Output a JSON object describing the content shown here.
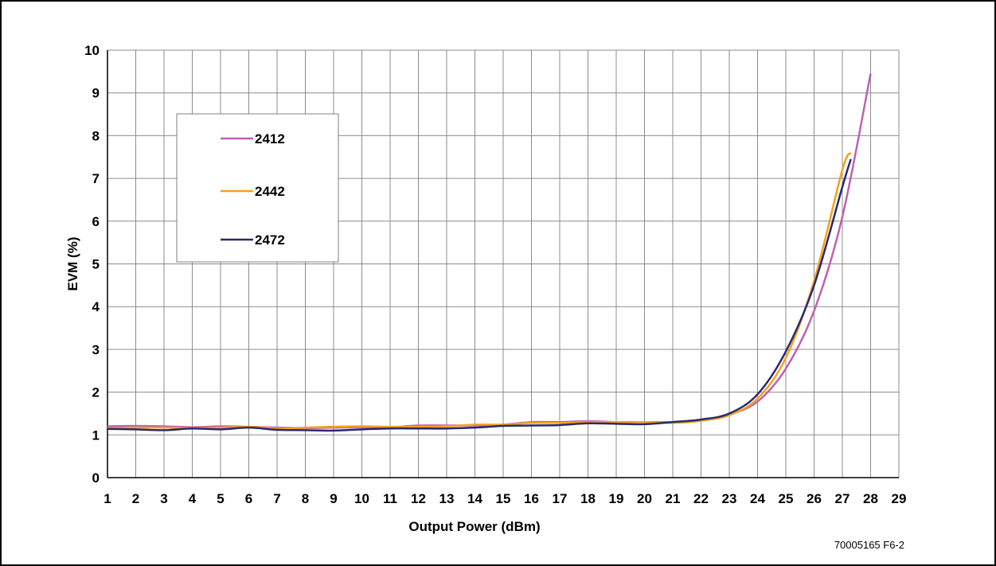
{
  "chart_data": {
    "type": "line",
    "title": "",
    "xlabel": "Output Power (dBm)",
    "ylabel": "EVM (%)",
    "xlim": [
      1,
      29
    ],
    "ylim": [
      0,
      10
    ],
    "x_ticks": [
      1,
      2,
      3,
      4,
      5,
      6,
      7,
      8,
      9,
      10,
      11,
      12,
      13,
      14,
      15,
      16,
      17,
      18,
      19,
      20,
      21,
      22,
      23,
      24,
      25,
      26,
      27,
      28,
      29
    ],
    "y_ticks": [
      0,
      1,
      2,
      3,
      4,
      5,
      6,
      7,
      8,
      9,
      10
    ],
    "grid": true,
    "legend_position": "top-left",
    "series": [
      {
        "name": "2412",
        "color": "#c060b0",
        "points": [
          [
            1,
            1.2
          ],
          [
            2,
            1.21
          ],
          [
            3,
            1.2
          ],
          [
            4,
            1.18
          ],
          [
            5,
            1.2
          ],
          [
            6,
            1.19
          ],
          [
            7,
            1.17
          ],
          [
            8,
            1.16
          ],
          [
            9,
            1.17
          ],
          [
            10,
            1.18
          ],
          [
            11,
            1.18
          ],
          [
            12,
            1.22
          ],
          [
            13,
            1.22
          ],
          [
            14,
            1.22
          ],
          [
            15,
            1.24
          ],
          [
            16,
            1.3
          ],
          [
            17,
            1.3
          ],
          [
            18,
            1.32
          ],
          [
            19,
            1.3
          ],
          [
            20,
            1.3
          ],
          [
            21,
            1.3
          ],
          [
            22,
            1.35
          ],
          [
            23,
            1.48
          ],
          [
            24,
            1.78
          ],
          [
            25,
            2.55
          ],
          [
            26,
            3.9
          ],
          [
            27,
            6.1
          ],
          [
            28,
            9.45
          ]
        ]
      },
      {
        "name": "2442",
        "color": "#f5a020",
        "points": [
          [
            1,
            1.16
          ],
          [
            2,
            1.17
          ],
          [
            3,
            1.17
          ],
          [
            4,
            1.16
          ],
          [
            5,
            1.17
          ],
          [
            6,
            1.19
          ],
          [
            7,
            1.15
          ],
          [
            8,
            1.17
          ],
          [
            9,
            1.19
          ],
          [
            10,
            1.2
          ],
          [
            11,
            1.19
          ],
          [
            12,
            1.19
          ],
          [
            13,
            1.2
          ],
          [
            14,
            1.24
          ],
          [
            15,
            1.24
          ],
          [
            16,
            1.28
          ],
          [
            17,
            1.28
          ],
          [
            18,
            1.3
          ],
          [
            19,
            1.3
          ],
          [
            20,
            1.3
          ],
          [
            21,
            1.28
          ],
          [
            22,
            1.33
          ],
          [
            23,
            1.46
          ],
          [
            24,
            1.85
          ],
          [
            25,
            2.8
          ],
          [
            26,
            4.6
          ],
          [
            27,
            7.2
          ],
          [
            27.3,
            7.6
          ]
        ]
      },
      {
        "name": "2472",
        "color": "#2a2a6e",
        "points": [
          [
            1,
            1.14
          ],
          [
            2,
            1.13
          ],
          [
            3,
            1.11
          ],
          [
            4,
            1.15
          ],
          [
            5,
            1.13
          ],
          [
            6,
            1.17
          ],
          [
            7,
            1.12
          ],
          [
            8,
            1.11
          ],
          [
            9,
            1.1
          ],
          [
            10,
            1.13
          ],
          [
            11,
            1.15
          ],
          [
            12,
            1.15
          ],
          [
            13,
            1.15
          ],
          [
            14,
            1.17
          ],
          [
            15,
            1.21
          ],
          [
            16,
            1.22
          ],
          [
            17,
            1.23
          ],
          [
            18,
            1.27
          ],
          [
            19,
            1.26
          ],
          [
            20,
            1.25
          ],
          [
            21,
            1.3
          ],
          [
            22,
            1.36
          ],
          [
            23,
            1.5
          ],
          [
            24,
            1.95
          ],
          [
            25,
            2.95
          ],
          [
            26,
            4.5
          ],
          [
            27,
            6.8
          ],
          [
            27.3,
            7.45
          ]
        ]
      }
    ]
  },
  "figure_id": "70005165 F6-2"
}
